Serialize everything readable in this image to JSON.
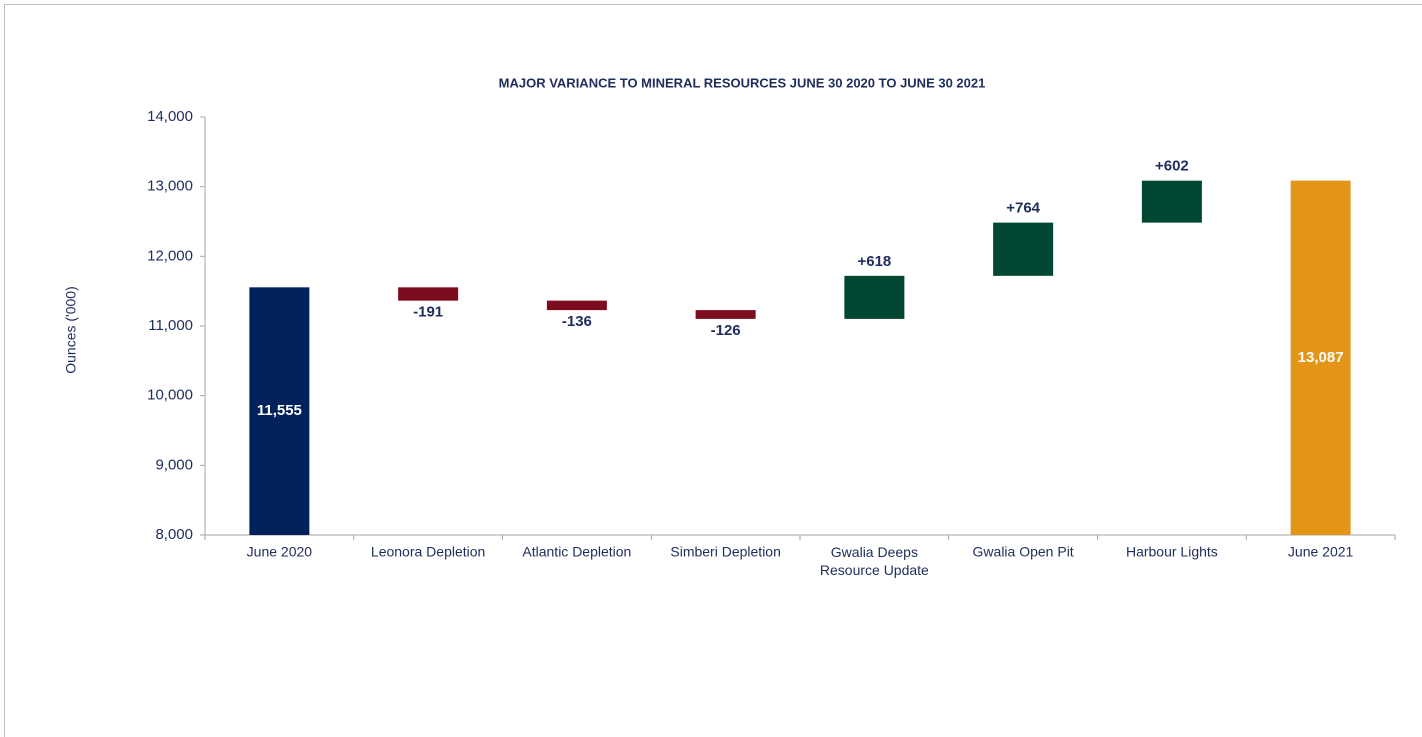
{
  "chart_data": {
    "type": "waterfall",
    "title": "MAJOR VARIANCE  TO MINERAL RESOURCES JUNE 30 2020 TO JUNE 30 2021",
    "y_label": "Ounces ('000)",
    "categories": [
      "June 2020",
      "Leonora Depletion",
      "Atlantic Depletion",
      "Simberi Depletion",
      "Gwalia Deeps\nResource Update",
      "Gwalia Open Pit",
      "Harbour Lights",
      "June 2021"
    ],
    "values": [
      11555,
      -191,
      -136,
      -126,
      618,
      764,
      602,
      13087
    ],
    "value_labels": [
      "11,555",
      "-191",
      "-136",
      "-126",
      "+618",
      "+764",
      "+602",
      "13,087"
    ],
    "colors": [
      "#00215a",
      "#7d0c1e",
      "#7d0c1e",
      "#7d0c1e",
      "#004733",
      "#004733",
      "#004733",
      "#e39517"
    ],
    "ylim": [
      8000,
      14000
    ],
    "yticks": [
      {
        "value": 8000,
        "label": "8,000"
      },
      {
        "value": 9000,
        "label": "9,000"
      },
      {
        "value": 10000,
        "label": "10,000"
      },
      {
        "value": 11000,
        "label": "11,000"
      },
      {
        "value": 12000,
        "label": "12,000"
      },
      {
        "value": 13000,
        "label": "13,000"
      },
      {
        "value": 14000,
        "label": "14,000"
      }
    ],
    "grid": false
  }
}
